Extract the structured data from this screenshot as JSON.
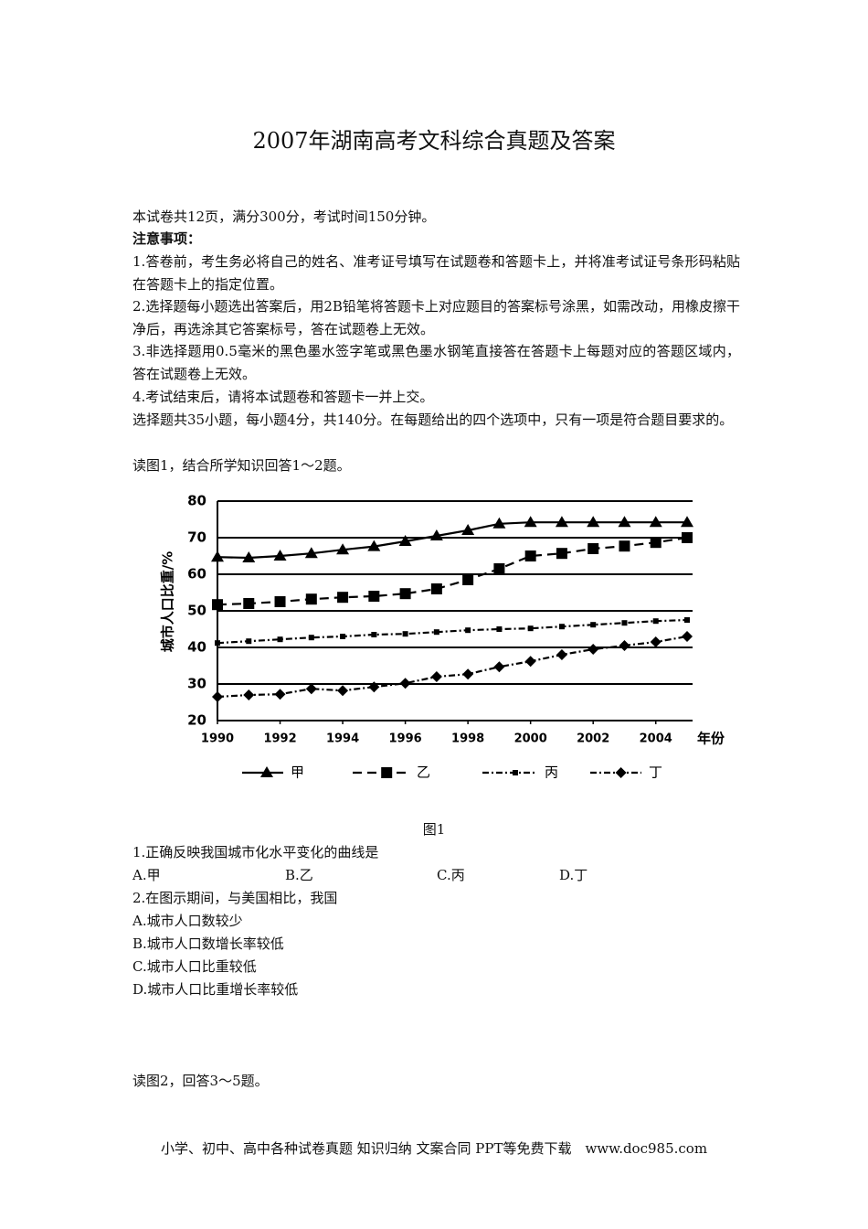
{
  "title": "2007年湖南高考文科综合真题及答案",
  "intro": "本试卷共12页，满分300分，考试时间150分钟。",
  "notice_heading": "注意事项：",
  "notices": [
    "1.答卷前，考生务必将自己的姓名、准考证号填写在试题卷和答题卡上，并将准考试证号条形码粘贴在答题卡上的指定位置。",
    "2.选择题每小题选出答案后，用2B铅笔将答题卡上对应题目的答案标号涂黑，如需改动，用橡皮擦干净后，再选涂其它答案标号，答在试题卷上无效。",
    "3.非选择题用0.5毫米的黑色墨水签字笔或黑色墨水钢笔直接答在答题卡上每题对应的答题区域内，答在试题卷上无效。",
    "4.考试结束后，请将本试题卷和答题卡一并上交。"
  ],
  "section_intro": "选择题共35小题，每小题4分，共140分。在每题给出的四个选项中，只有一项是符合题目要求的。",
  "read_1": "读图1，结合所学知识回答1～2题。",
  "chart_data": {
    "type": "line",
    "caption": "图1",
    "y_label": "城市人口比重/%",
    "x_label": "年份",
    "x": [
      1990,
      1991,
      1992,
      1993,
      1994,
      1995,
      1996,
      1997,
      1998,
      1999,
      2000,
      2001,
      2002,
      2003,
      2004,
      2005
    ],
    "xlim": [
      1990,
      2005
    ],
    "xticks": [
      1990,
      1992,
      1994,
      1996,
      1998,
      2000,
      2002,
      2004
    ],
    "ylim": [
      20,
      80
    ],
    "yticks": [
      20,
      30,
      40,
      50,
      60,
      70,
      80
    ],
    "grid": true,
    "series": [
      {
        "name": "甲",
        "color": "#000000",
        "dash": "solid",
        "marker": "triangle",
        "values": [
          64.7,
          64.5,
          65,
          65.7,
          66.7,
          67.6,
          69,
          70.5,
          72,
          73.8,
          74.2,
          74.2,
          74.2,
          74.2,
          74.2,
          74.2
        ]
      },
      {
        "name": "乙",
        "color": "#000000",
        "dash": "dashed",
        "marker": "square",
        "values": [
          51.7,
          52,
          52.5,
          53.2,
          53.7,
          54,
          54.7,
          56,
          58.5,
          61.5,
          65,
          65.7,
          67,
          67.7,
          68.7,
          70
        ]
      },
      {
        "name": "丙",
        "color": "#000000",
        "dash": "dashdot",
        "marker": "small-square",
        "values": [
          41.2,
          41.7,
          42.2,
          42.7,
          43,
          43.5,
          43.7,
          44.2,
          44.7,
          45,
          45.2,
          45.7,
          46.2,
          46.7,
          47.2,
          47.5
        ]
      },
      {
        "name": "丁",
        "color": "#000000",
        "dash": "dashdot",
        "marker": "diamond",
        "values": [
          26.5,
          27,
          27.2,
          28.7,
          28.2,
          29.2,
          30.2,
          32,
          32.7,
          34.7,
          36.2,
          38,
          39.5,
          40.5,
          41.5,
          43
        ]
      }
    ]
  },
  "questions": [
    {
      "stem": "1.正确反映我国城市化水平变化的曲线是",
      "options": [
        "A.甲",
        "B.乙",
        "C.丙",
        "D.丁"
      ]
    },
    {
      "stem": "2.在图示期间，与美国相比，我国",
      "options": [
        "A.城市人口数较少",
        "B.城市人口数增长率较低",
        "C.城市人口比重较低",
        "D.城市人口比重增长率较低"
      ]
    }
  ],
  "read_2": "读图2，回答3～5题。",
  "footer": "小学、初中、高中各种试卷真题 知识归纳 文案合同 PPT等免费下载　www.doc985.com"
}
